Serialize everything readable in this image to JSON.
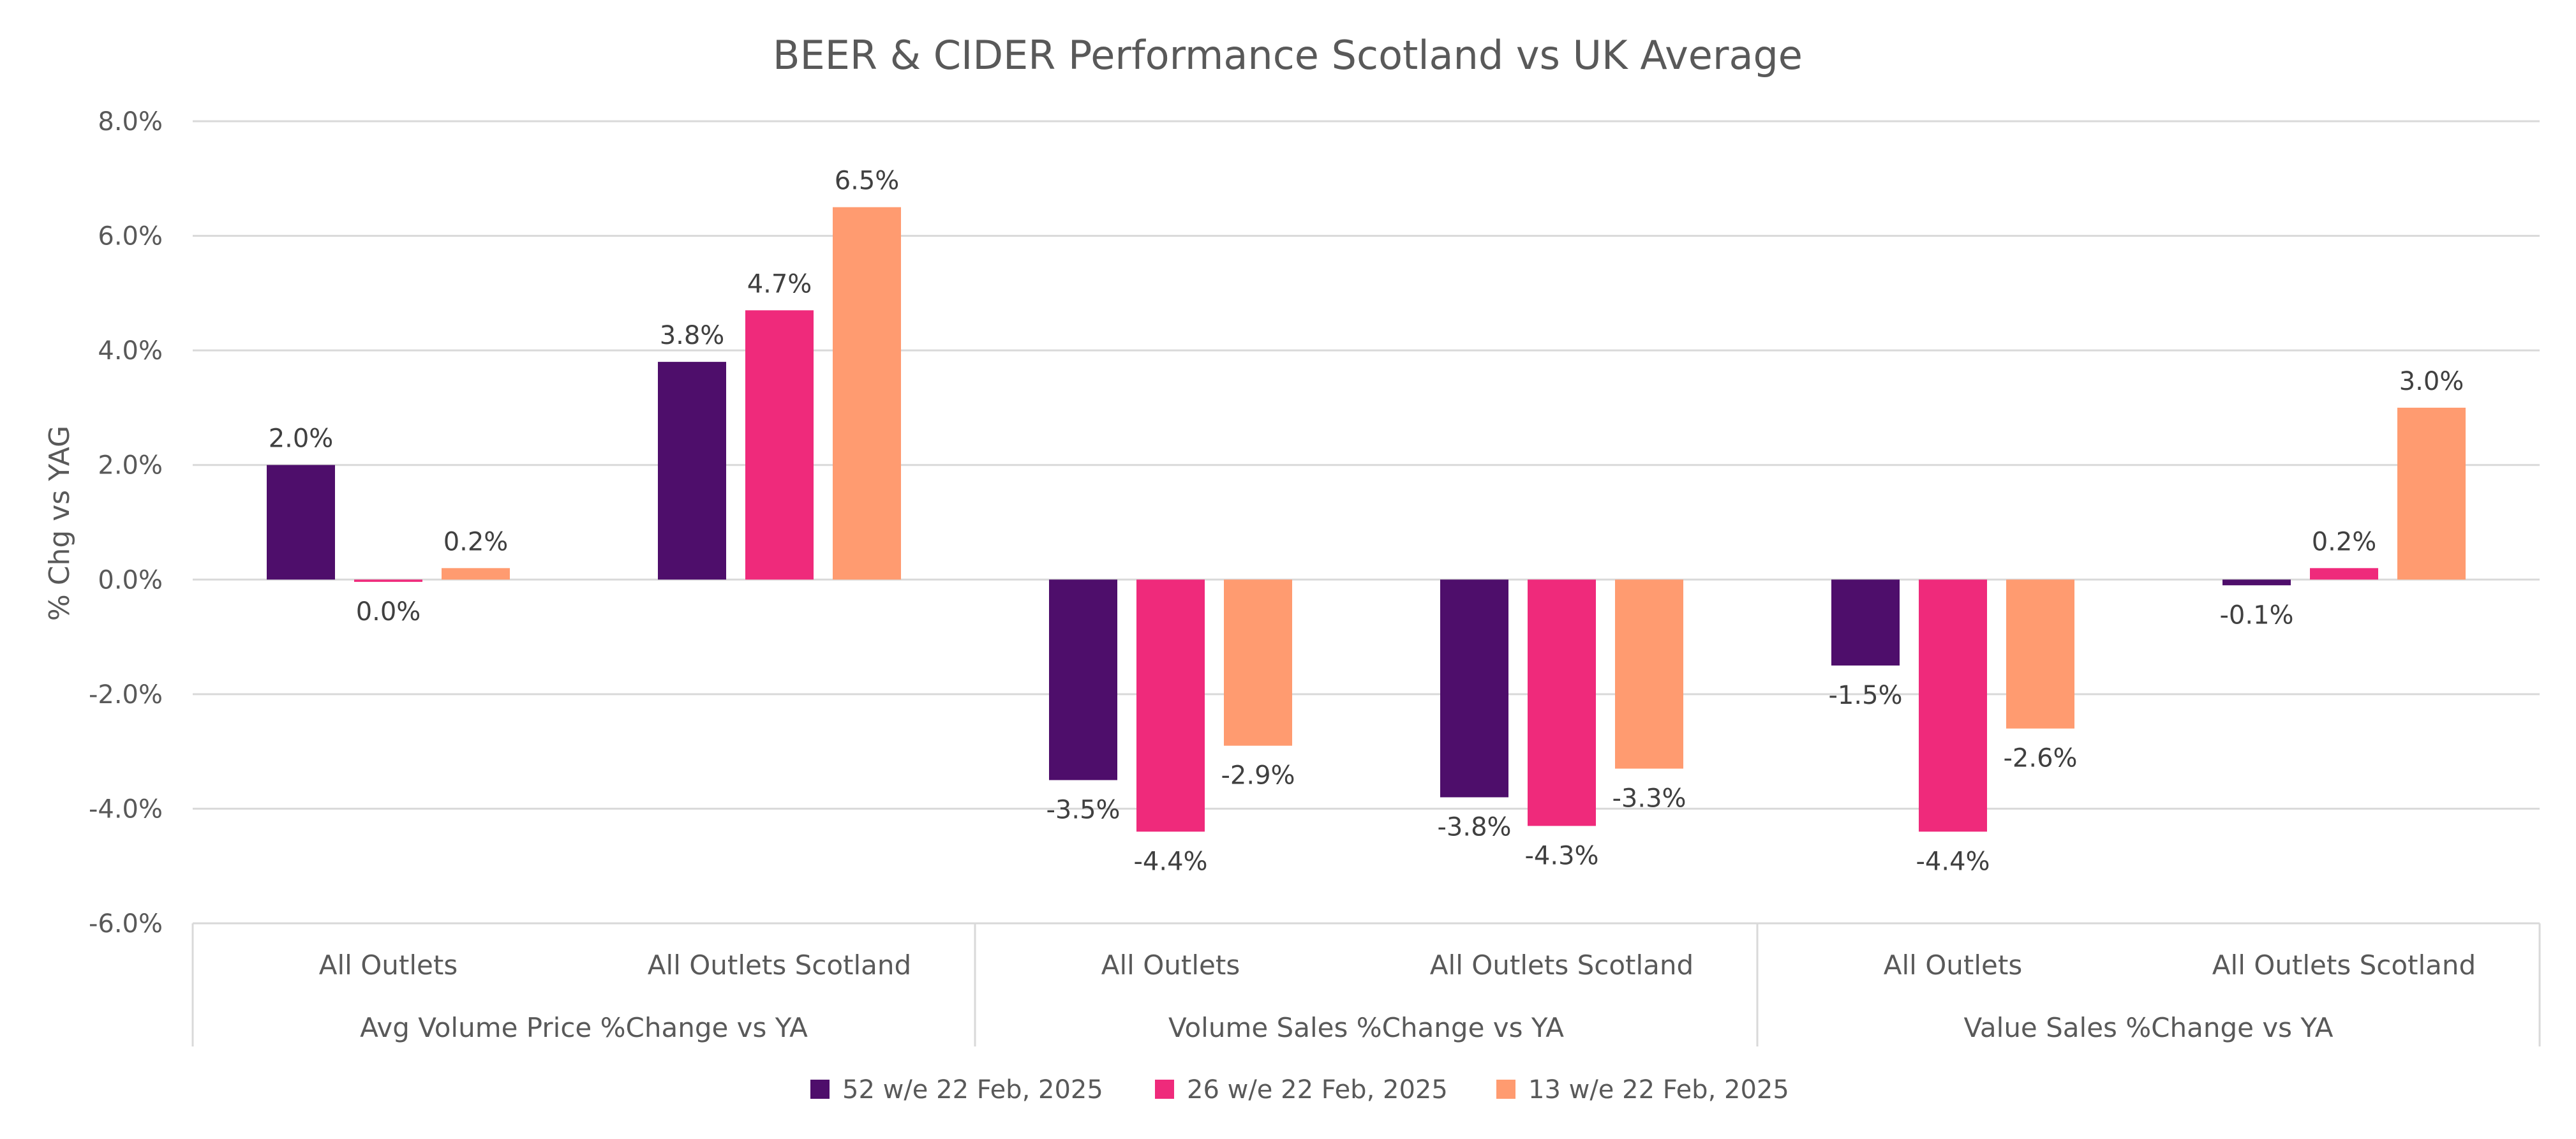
{
  "chart_data": {
    "type": "bar",
    "title": "BEER & CIDER Performance Scotland vs UK Average",
    "ylabel": "% Chg vs YAG",
    "xlabel": "",
    "ylim": [
      -6,
      8
    ],
    "y_ticks": [
      8,
      6,
      4,
      2,
      0,
      -2,
      -4,
      -6
    ],
    "y_tick_labels": [
      "8.0%",
      "6.0%",
      "4.0%",
      "2.0%",
      "0.0%",
      "-2.0%",
      "-4.0%",
      "-6.0%"
    ],
    "grid": true,
    "legend_position": "bottom",
    "groups": [
      {
        "label": "Avg Volume Price %Change vs YA",
        "categories": [
          "All Outlets",
          "All Outlets Scotland"
        ]
      },
      {
        "label": "Volume Sales %Change vs YA",
        "categories": [
          "All Outlets",
          "All Outlets Scotland"
        ]
      },
      {
        "label": "Value Sales %Change vs YA",
        "categories": [
          "All Outlets",
          "All Outlets Scotland"
        ]
      }
    ],
    "categories": [
      "All Outlets",
      "All Outlets Scotland",
      "All Outlets",
      "All Outlets Scotland",
      "All Outlets",
      "All Outlets Scotland"
    ],
    "series": [
      {
        "name": "52 w/e 22 Feb, 2025",
        "color": "#4e0e6b",
        "values": [
          2.0,
          3.8,
          -3.5,
          -3.8,
          -1.5,
          -0.1
        ],
        "labels": [
          "2.0%",
          "3.8%",
          "-3.5%",
          "-3.8%",
          "-1.5%",
          "-0.1%"
        ]
      },
      {
        "name": "26 w/e 22 Feb, 2025",
        "color": "#ef2a7b",
        "values": [
          -0.04,
          4.7,
          -4.4,
          -4.3,
          -4.4,
          0.2
        ],
        "labels": [
          "0.0%",
          "4.7%",
          "-4.4%",
          "-4.3%",
          "-4.4%",
          "0.2%"
        ]
      },
      {
        "name": "13 w/e 22 Feb, 2025",
        "color": "#ff9b70",
        "values": [
          0.2,
          6.5,
          -2.9,
          -3.3,
          -2.6,
          3.0
        ],
        "labels": [
          "0.2%",
          "6.5%",
          "-2.9%",
          "-3.3%",
          "-2.6%",
          "3.0%"
        ]
      }
    ]
  }
}
